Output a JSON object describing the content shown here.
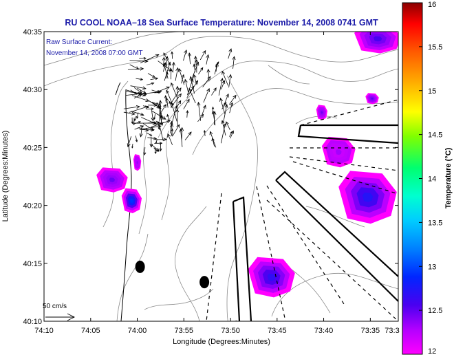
{
  "chart_data": {
    "type": "heatmap",
    "title": "RU COOL  NOAA–18  Sea Surface Temperature:  November 14, 2008 0741 GMT",
    "annotation": {
      "line1": "Raw Surface Current:",
      "line2": "November 14, 2008 07:00 GMT"
    },
    "xlabel": "Longitude (Degrees:Minutes)",
    "ylabel": "Latitude (Degrees:Minutes)",
    "xlim": [
      -74.1667,
      -73.5333
    ],
    "ylim": [
      40.1667,
      40.5833
    ],
    "x_ticks": [
      {
        "value": -74.1667,
        "label": "74:10"
      },
      {
        "value": -74.0833,
        "label": "74:05"
      },
      {
        "value": -74.0,
        "label": "74:00"
      },
      {
        "value": -73.9167,
        "label": "73:55"
      },
      {
        "value": -73.8333,
        "label": "73:50"
      },
      {
        "value": -73.75,
        "label": "73:45"
      },
      {
        "value": -73.6667,
        "label": "73:40"
      },
      {
        "value": -73.5833,
        "label": "73:35"
      },
      {
        "value": -73.5333,
        "label": "73:3"
      }
    ],
    "y_ticks": [
      {
        "value": 40.1667,
        "label": "40:10"
      },
      {
        "value": 40.25,
        "label": "40:15"
      },
      {
        "value": 40.3333,
        "label": "40:20"
      },
      {
        "value": 40.4167,
        "label": "40:25"
      },
      {
        "value": 40.5,
        "label": "40:30"
      },
      {
        "value": 40.5833,
        "label": "40:35"
      }
    ],
    "colorbar": {
      "label": "Temperature (°C)",
      "min": 12,
      "max": 16,
      "ticks": [
        {
          "value": 12,
          "label": "12"
        },
        {
          "value": 12.5,
          "label": "12.5"
        },
        {
          "value": 13,
          "label": "13"
        },
        {
          "value": 13.5,
          "label": "13.5"
        },
        {
          "value": 14,
          "label": "14"
        },
        {
          "value": 14.5,
          "label": "14.5"
        },
        {
          "value": 15,
          "label": "15"
        },
        {
          "value": 15.5,
          "label": "15.5"
        },
        {
          "value": 16,
          "label": "16"
        }
      ]
    },
    "scale_label": "50 cm/s",
    "sst_patches": [
      {
        "id": "ne-corner",
        "lon": -73.57,
        "lat": 40.573,
        "rx": 0.042,
        "ry": 0.021,
        "temp": 12.45
      },
      {
        "id": "upper-middle-east",
        "lon": -73.58,
        "lat": 40.487,
        "rx": 0.012,
        "ry": 0.008,
        "temp": 12.4
      },
      {
        "id": "upper-middle-west",
        "lon": -73.67,
        "lat": 40.467,
        "rx": 0.01,
        "ry": 0.011,
        "temp": 12.35
      },
      {
        "id": "east-large",
        "lon": -73.588,
        "lat": 40.345,
        "rx": 0.052,
        "ry": 0.038,
        "temp": 12.6
      },
      {
        "id": "east-upper",
        "lon": -73.64,
        "lat": 40.41,
        "rx": 0.03,
        "ry": 0.022,
        "temp": 12.2
      },
      {
        "id": "southern",
        "lon": -73.76,
        "lat": 40.23,
        "rx": 0.042,
        "ry": 0.029,
        "temp": 12.55
      },
      {
        "id": "coast-west",
        "lon": -74.045,
        "lat": 40.37,
        "rx": 0.028,
        "ry": 0.018,
        "temp": 12.35
      },
      {
        "id": "coast-lower",
        "lon": -74.01,
        "lat": 40.34,
        "rx": 0.018,
        "ry": 0.018,
        "temp": 12.8
      },
      {
        "id": "coast-upper",
        "lon": -74.0,
        "lat": 40.395,
        "rx": 0.007,
        "ry": 0.012,
        "temp": 12.25
      }
    ],
    "markers": [
      {
        "lon": -73.995,
        "lat": 40.245
      },
      {
        "lon": -73.88,
        "lat": 40.223
      }
    ]
  }
}
